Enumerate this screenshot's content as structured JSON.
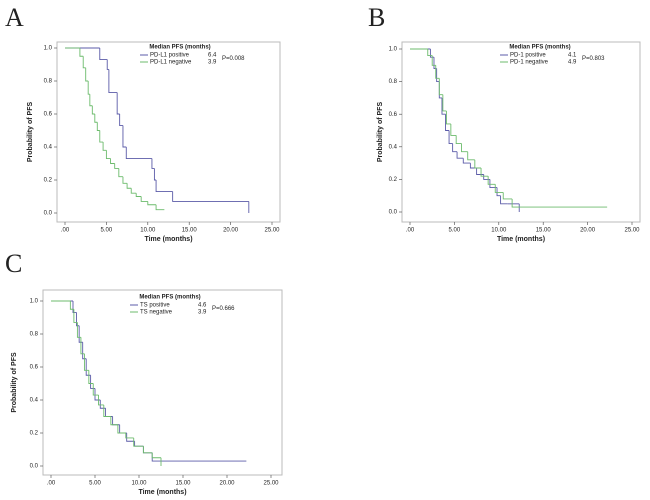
{
  "chart_data": [
    {
      "type": "line",
      "panel_label": "A",
      "xlabel": "Time (months)",
      "ylabel": "Probability of PFS",
      "legend_title": "Median PFS (months)",
      "annotation": "P=0.008",
      "xlim": [
        0,
        25
      ],
      "ylim": [
        0,
        1
      ],
      "xticks": [
        {
          "value": 0,
          "label": ".00"
        },
        {
          "value": 5,
          "label": "5.00"
        },
        {
          "value": 10,
          "label": "10.00"
        },
        {
          "value": 15,
          "label": "15.00"
        },
        {
          "value": 20,
          "label": "20.00"
        },
        {
          "value": 25,
          "label": "25.00"
        }
      ],
      "yticks": [
        {
          "value": 0,
          "label": "0.0"
        },
        0.2,
        0.4,
        0.6,
        0.8,
        {
          "value": 1,
          "label": "1.0"
        }
      ],
      "series": [
        {
          "name": "PD-L1 positive",
          "median": 6.4,
          "color": "#5b5ba8",
          "x": [
            0,
            4.2,
            5.1,
            5.3,
            6.3,
            6.6,
            7.0,
            7.4,
            10.5,
            10.8,
            11.0,
            13.0,
            22.2
          ],
          "values": [
            1.0,
            0.93,
            0.87,
            0.73,
            0.6,
            0.53,
            0.4,
            0.33,
            0.27,
            0.2,
            0.13,
            0.07,
            0.0
          ]
        },
        {
          "name": "PD-L1 negative",
          "median": 3.9,
          "color": "#6cbb6c",
          "x": [
            0,
            1.8,
            2.2,
            2.5,
            2.8,
            3.0,
            3.3,
            3.6,
            3.9,
            4.2,
            4.6,
            5.0,
            5.5,
            6.0,
            6.5,
            7.0,
            7.5,
            8.0,
            8.6,
            9.2,
            10.0,
            11.0,
            12.0
          ],
          "values": [
            1.0,
            0.95,
            0.88,
            0.8,
            0.72,
            0.65,
            0.6,
            0.55,
            0.5,
            0.43,
            0.38,
            0.33,
            0.3,
            0.27,
            0.22,
            0.18,
            0.15,
            0.12,
            0.1,
            0.07,
            0.05,
            0.02,
            0.02
          ]
        }
      ]
    },
    {
      "type": "line",
      "panel_label": "B",
      "xlabel": "Time (months)",
      "ylabel": "Probability of PFS",
      "legend_title": "Median PFS (months)",
      "annotation": "P=0.803",
      "xlim": [
        0,
        25
      ],
      "ylim": [
        0,
        1
      ],
      "xticks": [
        {
          "value": 0,
          "label": ".00"
        },
        {
          "value": 5,
          "label": "5.00"
        },
        {
          "value": 10,
          "label": "10.00"
        },
        {
          "value": 15,
          "label": "15.00"
        },
        {
          "value": 20,
          "label": "20.00"
        },
        {
          "value": 25,
          "label": "25.00"
        }
      ],
      "yticks": [
        {
          "value": 0,
          "label": "0.0"
        },
        0.2,
        0.4,
        0.6,
        0.8,
        {
          "value": 1,
          "label": "1.0"
        }
      ],
      "series": [
        {
          "name": "PD-1 positive",
          "median": 4.1,
          "color": "#5b5ba8",
          "x": [
            0,
            2.3,
            2.7,
            3.0,
            3.3,
            3.6,
            4.0,
            4.4,
            4.8,
            5.3,
            6.0,
            6.8,
            7.5,
            8.3,
            9.0,
            9.8,
            10.2,
            11.0,
            12.3
          ],
          "values": [
            1.0,
            0.95,
            0.88,
            0.8,
            0.7,
            0.6,
            0.5,
            0.42,
            0.37,
            0.33,
            0.3,
            0.27,
            0.23,
            0.2,
            0.15,
            0.1,
            0.05,
            0.05,
            0.0
          ]
        },
        {
          "name": "PD-1 negative",
          "median": 4.9,
          "color": "#6cbb6c",
          "x": [
            0,
            2.0,
            2.5,
            2.9,
            3.3,
            3.7,
            4.1,
            4.6,
            5.2,
            5.8,
            6.5,
            7.3,
            8.0,
            8.8,
            9.6,
            10.5,
            11.5,
            22.2
          ],
          "values": [
            1.0,
            0.96,
            0.9,
            0.82,
            0.72,
            0.62,
            0.54,
            0.47,
            0.42,
            0.37,
            0.32,
            0.27,
            0.22,
            0.17,
            0.12,
            0.08,
            0.03,
            0.03
          ]
        }
      ]
    },
    {
      "type": "line",
      "panel_label": "C",
      "xlabel": "Time (months)",
      "ylabel": "Probability of PFS",
      "legend_title": "Median PFS (months)",
      "annotation": "P=0.666",
      "xlim": [
        0,
        25
      ],
      "ylim": [
        0,
        1
      ],
      "xticks": [
        {
          "value": 0,
          "label": ".00"
        },
        {
          "value": 5,
          "label": "5.00"
        },
        {
          "value": 10,
          "label": "10.00"
        },
        {
          "value": 15,
          "label": "15.00"
        },
        {
          "value": 20,
          "label": "20.00"
        },
        {
          "value": 25,
          "label": "25.00"
        }
      ],
      "yticks": [
        {
          "value": 0,
          "label": "0.0"
        },
        0.2,
        0.4,
        0.6,
        0.8,
        {
          "value": 1,
          "label": "1.0"
        }
      ],
      "series": [
        {
          "name": "TS positive",
          "median": 4.6,
          "color": "#5b5ba8",
          "x": [
            0,
            2.5,
            2.9,
            3.2,
            3.6,
            4.0,
            4.5,
            5.0,
            5.6,
            6.2,
            7.0,
            7.8,
            8.6,
            9.5,
            10.5,
            11.5,
            22.2
          ],
          "values": [
            1.0,
            0.93,
            0.85,
            0.75,
            0.65,
            0.55,
            0.47,
            0.4,
            0.35,
            0.3,
            0.25,
            0.2,
            0.15,
            0.12,
            0.08,
            0.03,
            0.03
          ]
        },
        {
          "name": "TS negative",
          "median": 3.9,
          "color": "#6cbb6c",
          "x": [
            0,
            2.2,
            2.6,
            3.0,
            3.4,
            3.8,
            4.3,
            4.8,
            5.4,
            6.0,
            6.8,
            7.6,
            8.5,
            9.4,
            10.5,
            11.5,
            12.5
          ],
          "values": [
            1.0,
            0.95,
            0.87,
            0.78,
            0.68,
            0.58,
            0.5,
            0.43,
            0.37,
            0.3,
            0.25,
            0.2,
            0.17,
            0.12,
            0.08,
            0.05,
            0.0
          ]
        }
      ]
    }
  ]
}
